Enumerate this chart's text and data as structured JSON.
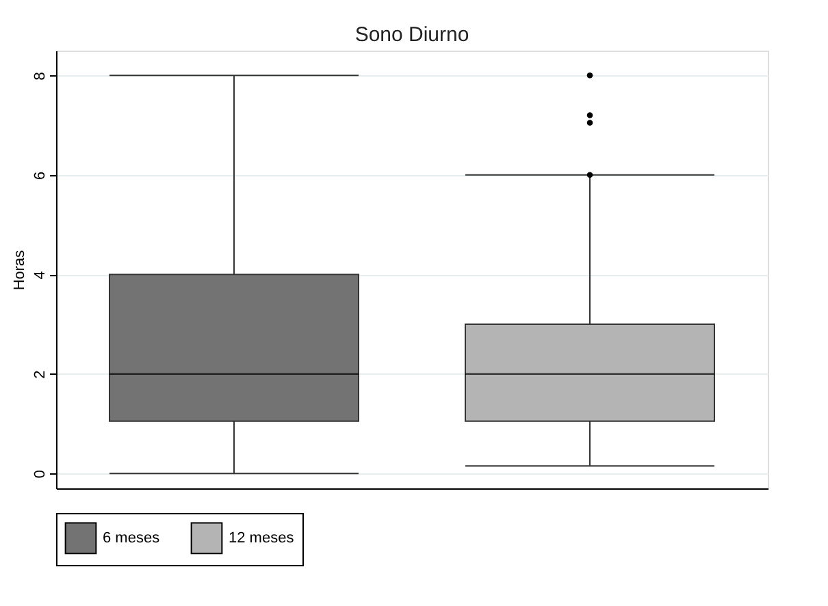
{
  "chart_data": {
    "type": "box",
    "title": "Sono Diurno",
    "ylabel": "Horas",
    "categories": [
      null
    ],
    "series": [
      {
        "name": "6 meses",
        "color": "#737373",
        "boxes": [
          {
            "low": 0,
            "q1": 1.05,
            "median": 2,
            "q3": 4,
            "high": 8
          }
        ]
      },
      {
        "name": "12 meses",
        "color": "#b4b4b4",
        "boxes": [
          {
            "low": 0.15,
            "q1": 1.05,
            "median": 2,
            "q3": 3,
            "high": 6,
            "outliers": [
              6,
              7.05,
              7.2,
              8
            ]
          }
        ]
      }
    ],
    "ylim": [
      -0.3,
      8.5
    ],
    "yticks": [
      0,
      2,
      4,
      6,
      8
    ],
    "grid": "y",
    "legend": "bottom",
    "tick_labels": "y"
  }
}
